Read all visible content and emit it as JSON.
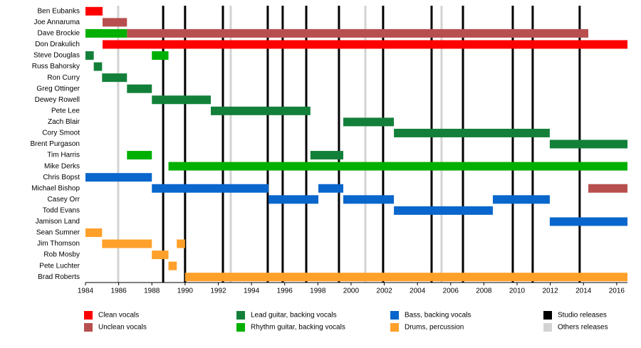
{
  "chart_data": {
    "type": "timeline",
    "categories": [
      "Ben Eubanks",
      "Joe Annaruma",
      "Dave Brockie",
      "Don Drakulich",
      "Steve Douglas",
      "Russ Bahorsky",
      "Ron Curry",
      "Greg Ottinger",
      "Dewey Rowell",
      "Pete Lee",
      "Zach Blair",
      "Cory Smoot",
      "Brent Purgason",
      "Tim Harris",
      "Mike Derks",
      "Chris Bopst",
      "Michael Bishop",
      "Casey Orr",
      "Todd Evans",
      "Jamison Land",
      "Sean Sumner",
      "Jim Thomson",
      "Rob Mosby",
      "Pete Luchter",
      "Brad Roberts"
    ],
    "series": [
      {
        "name": "Clean vocals",
        "color": "#ff0000",
        "values": [
          [
            [
              1984,
              1985.03
            ]
          ],
          null,
          null,
          [
            [
              1985.03,
              2016.65
            ]
          ],
          null,
          null,
          null,
          null,
          null,
          null,
          null,
          null,
          null,
          null,
          null,
          null,
          null,
          null,
          null,
          null,
          null,
          null,
          null,
          null,
          null
        ]
      },
      {
        "name": "Unclean vocals",
        "color": "#b84f4f",
        "values": [
          null,
          [
            [
              1985.03,
              1986.5
            ]
          ],
          [
            [
              1986.5,
              2014.29
            ]
          ],
          null,
          null,
          null,
          null,
          null,
          null,
          null,
          null,
          null,
          null,
          null,
          null,
          null,
          [
            [
              2014.29,
              2016.65
            ]
          ],
          null,
          null,
          null,
          null,
          null,
          null,
          null,
          null
        ]
      },
      {
        "name": "Lead guitar, backing vocals",
        "color": "#13803a",
        "values": [
          null,
          null,
          null,
          null,
          [
            [
              1984,
              1984.5
            ]
          ],
          [
            [
              1984.5,
              1985
            ]
          ],
          [
            [
              1985,
              1986.5
            ]
          ],
          [
            [
              1986.5,
              1988
            ]
          ],
          [
            [
              1988,
              1991.55
            ]
          ],
          [
            [
              1991.55,
              1997.55
            ]
          ],
          [
            [
              1999.53,
              2002.58
            ]
          ],
          [
            [
              2002.58,
              2011.97
            ]
          ],
          [
            [
              2011.97,
              2016.65
            ]
          ],
          [
            [
              1997.55,
              1999.53
            ]
          ],
          null,
          null,
          null,
          null,
          null,
          null,
          null,
          null,
          null,
          null,
          null
        ]
      },
      {
        "name": "Rhythm guitar, backing vocals",
        "color": "#00b000",
        "values": [
          null,
          null,
          [
            [
              1984,
              1986.5
            ]
          ],
          null,
          [
            [
              1988,
              1989
            ]
          ],
          null,
          null,
          null,
          null,
          null,
          null,
          null,
          null,
          [
            [
              1986.5,
              1988
            ]
          ],
          [
            [
              1989,
              2016.65
            ]
          ],
          null,
          null,
          null,
          null,
          null,
          null,
          null,
          null,
          null,
          null
        ]
      },
      {
        "name": "Bass, backing vocals",
        "color": "#0866cc",
        "values": [
          null,
          null,
          null,
          null,
          null,
          null,
          null,
          null,
          null,
          null,
          null,
          null,
          null,
          null,
          null,
          [
            [
              1984,
              1988
            ]
          ],
          [
            [
              1988,
              1995.03
            ],
            [
              1998.03,
              1999.53
            ]
          ],
          [
            [
              1995.03,
              1998.03
            ],
            [
              1999.53,
              2002.58
            ],
            [
              2008.54,
              2011.97
            ]
          ],
          [
            [
              2002.58,
              2008.54
            ]
          ],
          [
            [
              2011.97,
              2016.65
            ]
          ],
          null,
          null,
          null,
          null,
          null
        ]
      },
      {
        "name": "Drums, percussion",
        "color": "#ffa02a",
        "values": [
          null,
          null,
          null,
          null,
          null,
          null,
          null,
          null,
          null,
          null,
          null,
          null,
          null,
          null,
          null,
          null,
          null,
          null,
          null,
          null,
          [
            [
              1984,
              1985
            ]
          ],
          [
            [
              1985,
              1988
            ],
            [
              1989.5,
              1990
            ]
          ],
          [
            [
              1988,
              1989
            ]
          ],
          [
            [
              1989,
              1989.5
            ]
          ],
          [
            [
              1990,
              2016.65
            ]
          ]
        ]
      }
    ],
    "release_lines": [
      {
        "name": "Studio releases",
        "color": "#000000",
        "values": [
          1988.68,
          1990.0,
          1992.28,
          1994.98,
          1995.88,
          1997.3,
          1999.27,
          2001.93,
          2004.85,
          2006.74,
          2009.74,
          2010.94,
          2013.77
        ]
      },
      {
        "name": "Others releases",
        "color": "#d3d3d3",
        "values": [
          1985.97,
          1992.75,
          2000.86,
          2005.45
        ]
      }
    ],
    "xlim": [
      1984,
      2016.65
    ],
    "xticks": [
      1984,
      1986,
      1988,
      1990,
      1992,
      1994,
      1996,
      1998,
      2000,
      2002,
      2004,
      2006,
      2008,
      2010,
      2012,
      2014,
      2016
    ]
  }
}
